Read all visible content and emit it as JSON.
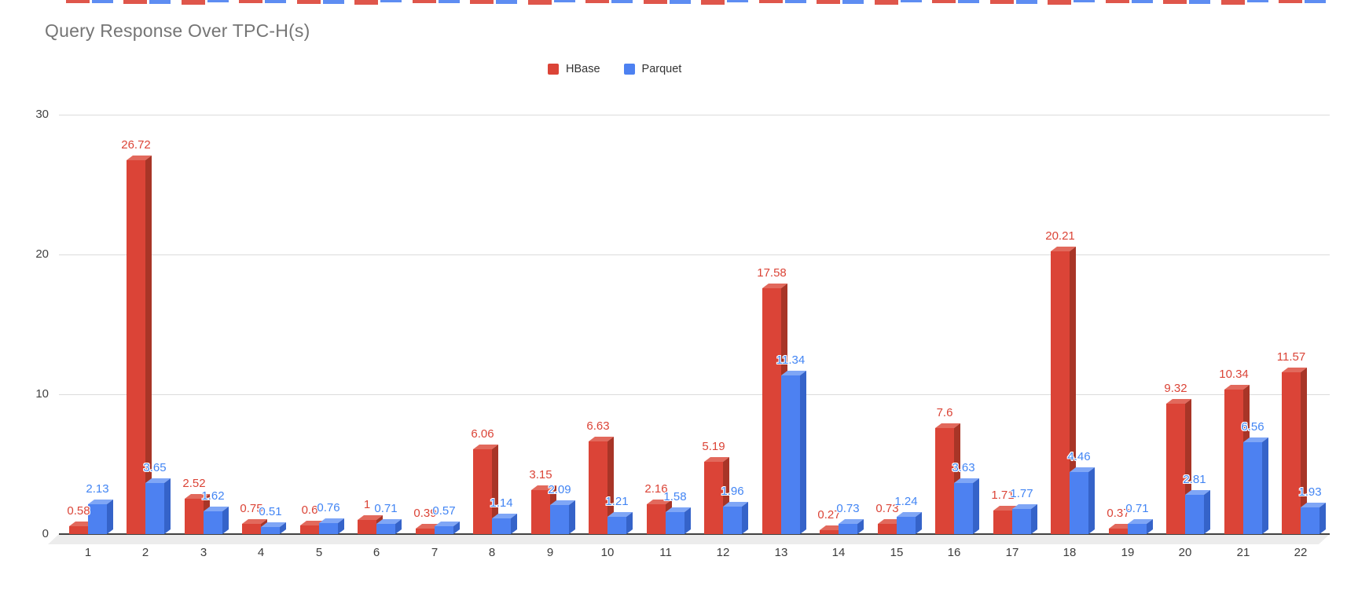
{
  "title": "Query Response Over TPC-H(s)",
  "top_cropped_strip": {
    "present": true,
    "description": "bottom slivers of value labels from a chart cropped above",
    "colors": [
      "#db4437",
      "#4d81f1"
    ]
  },
  "chart_data": {
    "type": "bar",
    "style": "3d-column",
    "title": "Query Response Over TPC-H(s)",
    "xlabel": "",
    "ylabel": "",
    "categories": [
      "1",
      "2",
      "3",
      "4",
      "5",
      "6",
      "7",
      "8",
      "9",
      "10",
      "11",
      "12",
      "13",
      "14",
      "15",
      "16",
      "17",
      "18",
      "19",
      "20",
      "21",
      "22"
    ],
    "series": [
      {
        "name": "HBase",
        "color": "#db4437",
        "top": "#e2695c",
        "side": "#a83527",
        "label_color": "#db4437",
        "values": [
          0.58,
          26.72,
          2.52,
          0.75,
          0.6,
          1,
          0.39,
          6.06,
          3.15,
          6.63,
          2.16,
          5.19,
          17.58,
          0.27,
          0.73,
          7.6,
          1.71,
          20.21,
          0.37,
          9.32,
          10.34,
          11.57
        ]
      },
      {
        "name": "Parquet",
        "color": "#4d81f1",
        "top": "#7fa6f6",
        "side": "#3563c9",
        "label_color": "#4285f4",
        "values": [
          2.13,
          3.65,
          1.62,
          0.51,
          0.76,
          0.71,
          0.57,
          1.14,
          2.09,
          1.21,
          1.58,
          1.96,
          11.34,
          0.73,
          1.24,
          3.63,
          1.77,
          4.46,
          0.71,
          2.81,
          6.56,
          1.93
        ]
      }
    ],
    "yticks": [
      0,
      10,
      20,
      30
    ],
    "ylim": [
      0,
      30
    ],
    "grid": true,
    "grid_color": "#dcdcdc",
    "axis_color": "#424242",
    "floor_color": "#ececec",
    "legend_position": "top-center"
  }
}
